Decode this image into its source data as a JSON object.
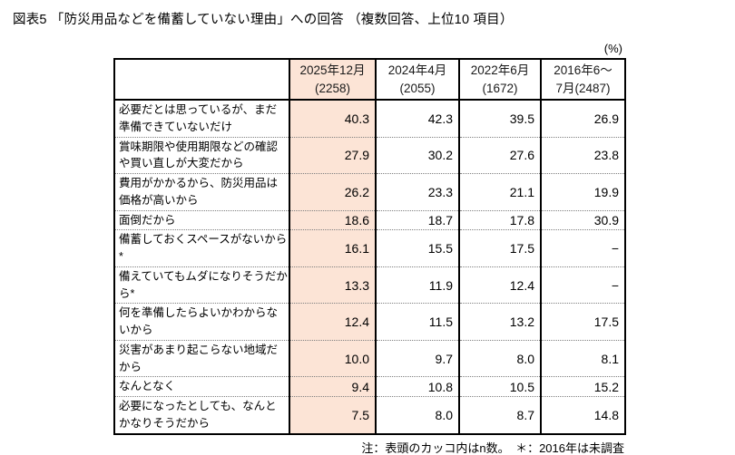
{
  "title": "図表5 「防災用品などを備蓄していない理由」への回答 （複数回答、上位10 項目）",
  "unit_label": "(%)",
  "note": "注：表頭のカッコ内はn数。　＊：2016年は未調査",
  "colors": {
    "highlight_column": "#FCE4D6",
    "border": "#000000",
    "row_divider": "#7F7F7F"
  },
  "table": {
    "columns": [
      "2025年12月\n(2258)",
      "2024年4月\n(2055)",
      "2022年6月\n(1672)",
      "2016年6～\n7月(2487)"
    ],
    "rows": [
      {
        "label": "必要だとは思っているが、まだ準備できていないだけ",
        "values": [
          "40.3",
          "42.3",
          "39.5",
          "26.9"
        ]
      },
      {
        "label": "賞味期限や使用期限などの確認や買い直しが大変だから",
        "values": [
          "27.9",
          "30.2",
          "27.6",
          "23.8"
        ]
      },
      {
        "label": "費用がかかるから、防災用品は価格が高いから",
        "values": [
          "26.2",
          "23.3",
          "21.1",
          "19.9"
        ]
      },
      {
        "label": "面倒だから",
        "values": [
          "18.6",
          "18.7",
          "17.8",
          "30.9"
        ]
      },
      {
        "label": "備蓄しておくスペースがないから*",
        "values": [
          "16.1",
          "15.5",
          "17.5",
          "−"
        ]
      },
      {
        "label": "備えていてもムダになりそうだから*",
        "values": [
          "13.3",
          "11.9",
          "12.4",
          "−"
        ]
      },
      {
        "label": "何を準備したらよいかわからないから",
        "values": [
          "12.4",
          "11.5",
          "13.2",
          "17.5"
        ]
      },
      {
        "label": "災害があまり起こらない地域だから",
        "values": [
          "10.0",
          "9.7",
          "8.0",
          "8.1"
        ]
      },
      {
        "label": "なんとなく",
        "values": [
          "9.4",
          "10.8",
          "10.5",
          "15.2"
        ]
      },
      {
        "label": "必要になったとしても、なんとかなりそうだから",
        "values": [
          "7.5",
          "8.0",
          "8.7",
          "14.8"
        ]
      }
    ]
  }
}
